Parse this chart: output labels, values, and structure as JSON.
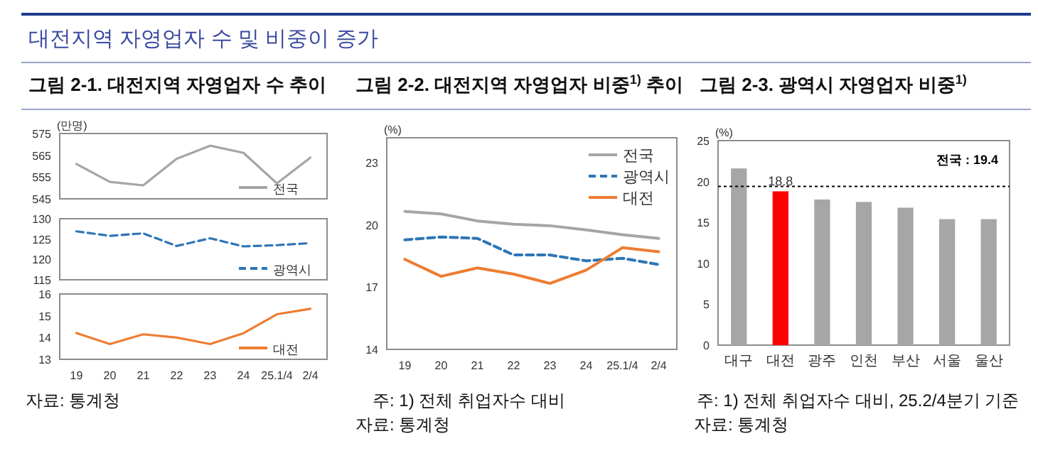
{
  "chart_data": [
    {
      "type": "other",
      "title": "대전지역 자영업자 수 및 비중이 증가"
    },
    {
      "type": "line",
      "title": "그림 2-1. 대전지역 자영업자 수 추이",
      "ylabel": "(만명)",
      "categories": [
        null,
        null,
        null,
        null,
        null,
        null,
        null,
        null
      ],
      "series": [
        {
          "name": "전국",
          "color": "#a5a5a5",
          "values": [
            561,
            552.8,
            551.2,
            563.4,
            569.4,
            566.1,
            552.1,
            563.9
          ]
        }
      ],
      "ylim": [
        545,
        575
      ],
      "yticks": [
        545,
        555,
        565,
        575
      ],
      "legend": "bottom right"
    },
    {
      "type": "line",
      "categories": [
        null,
        null,
        null,
        null,
        null,
        null,
        null,
        null
      ],
      "series": [
        {
          "name": "광역시",
          "color": "#2e75b6",
          "line_style": "dashed",
          "values": [
            126.9,
            125.8,
            126.4,
            123.3,
            125.2,
            123.2,
            123.5,
            124.0
          ]
        }
      ],
      "ylim": [
        115,
        130
      ],
      "yticks": [
        115,
        120,
        125,
        130
      ],
      "legend": "bottom right"
    },
    {
      "type": "line",
      "categories": [
        "19",
        "20",
        "21",
        "22",
        "23",
        "24",
        "25.1/4",
        "2/4"
      ],
      "series": [
        {
          "name": "대전",
          "color": "#ed7d31",
          "values": [
            14.21,
            13.7,
            14.15,
            14.0,
            13.7,
            14.2,
            15.07,
            15.32
          ]
        }
      ],
      "ylim": [
        13,
        16
      ],
      "yticks": [
        13,
        14,
        15,
        16
      ],
      "legend": "bottom right",
      "annotations": [
        "자료: 통계청"
      ]
    },
    {
      "type": "line",
      "title": "그림 2-2. 대전지역 자영업자 비중$^{1)}$ 추이",
      "ylabel": "(%)",
      "categories": [
        "19",
        "20",
        "21",
        "22",
        "23",
        "24",
        "25.1/4",
        "2/4"
      ],
      "series": [
        {
          "name": "전국",
          "color": "#a5a5a5",
          "values": [
            20.65,
            20.53,
            20.19,
            20.03,
            19.96,
            19.76,
            19.53,
            19.35
          ]
        },
        {
          "name": "광역시",
          "color": "#2e75b6",
          "line_style": "dashed",
          "values": [
            19.28,
            19.42,
            19.35,
            18.55,
            18.55,
            18.27,
            18.39,
            18.09
          ]
        },
        {
          "name": "대전",
          "color": "#ed7d31",
          "values": [
            18.34,
            17.52,
            17.93,
            17.63,
            17.18,
            17.82,
            18.9,
            18.71
          ]
        }
      ],
      "ylim": [
        14,
        24.2
      ],
      "yticks": [
        14,
        17,
        20,
        23
      ],
      "legend": "top right",
      "annotations": [
        "주: 1) 전체 취업자수 대비",
        "자료: 통계청"
      ]
    },
    {
      "type": "bar",
      "title": "그림 2-3. 광역시 자영업자 비중$^{1)}$",
      "ylabel": "(%)",
      "categories": [
        "대구",
        "대전",
        "광주",
        "인천",
        "부산",
        "서울",
        "울산"
      ],
      "values": [
        21.6,
        18.8,
        17.8,
        17.5,
        16.8,
        15.4,
        15.4
      ],
      "colors": [
        "#a6a6a6",
        "#ff0000",
        "#a6a6a6",
        "#a6a6a6",
        "#a6a6a6",
        "#a6a6a6",
        "#a6a6a6"
      ],
      "value_labels": [
        null,
        "18.8",
        null,
        null,
        null,
        null,
        null
      ],
      "ylim": [
        0,
        25
      ],
      "yticks": [
        0,
        5,
        10,
        15,
        20,
        25
      ],
      "ref_lines": [
        {
          "axis": "y",
          "value": 19.4,
          "label": "전국 : 19.4",
          "line_style": "dotted",
          "color": "#000000"
        }
      ],
      "annotations": [
        "주: 1) 전체 취업자수 대비, 25.2/4분기 기준",
        "자료: 통계청"
      ]
    }
  ]
}
